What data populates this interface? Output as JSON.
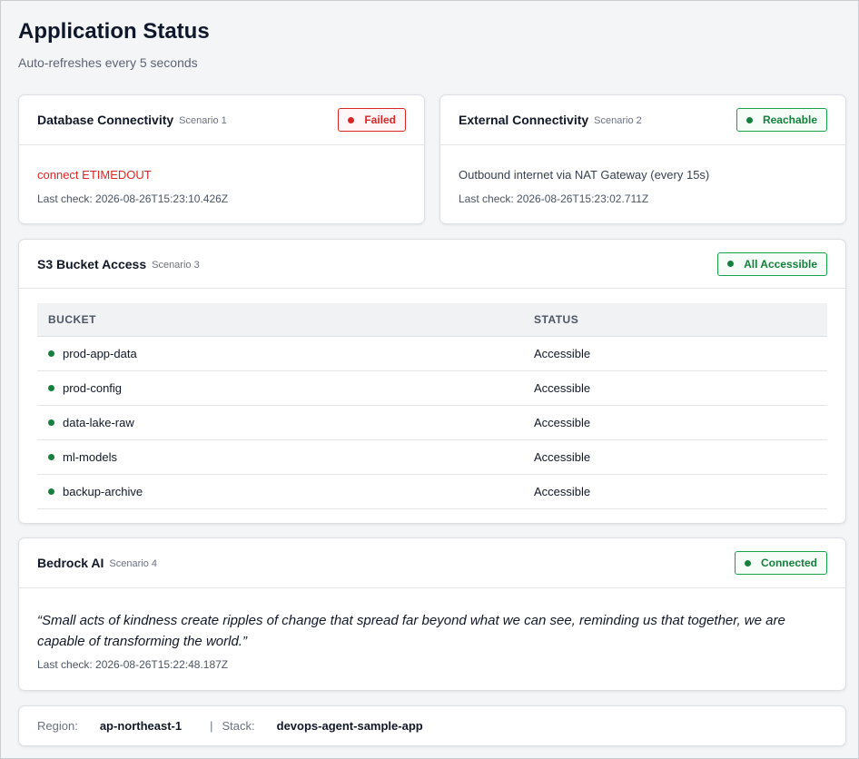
{
  "header": {
    "title": "Application Status",
    "subtitle": "Auto-refreshes every 5 seconds"
  },
  "cards": [
    {
      "title": "Database Connectivity",
      "scenario": "Scenario 1",
      "badge": "Failed",
      "message": "connect ETIMEDOUT",
      "last_check": "Last check: 2026-08-26T15:23:10.426Z"
    },
    {
      "title": "External Connectivity",
      "scenario": "Scenario 2",
      "badge": "Reachable",
      "message": "Outbound internet via NAT Gateway (every 15s)",
      "last_check": "Last check: 2026-08-26T15:23:02.711Z"
    }
  ],
  "s3": {
    "title": "S3 Bucket Access",
    "scenario": "Scenario 3",
    "badge": "All Accessible",
    "columns": [
      "BUCKET",
      "STATUS"
    ],
    "rows": [
      [
        "prod-app-data",
        "Accessible"
      ],
      [
        "prod-config",
        "Accessible"
      ],
      [
        "data-lake-raw",
        "Accessible"
      ],
      [
        "ml-models",
        "Accessible"
      ],
      [
        "backup-archive",
        "Accessible"
      ]
    ]
  },
  "bedrock": {
    "title": "Bedrock AI",
    "scenario": "Scenario 4",
    "badge": "Connected",
    "quote": "“Small acts of kindness create ripples of change that spread far beyond what we can see, reminding us that together, we are capable of transforming the world.”",
    "last_check": "Last check: 2026-08-26T15:22:48.187Z"
  },
  "footer": {
    "region_label": "Region:",
    "region": "ap-northeast-1",
    "separator": "|",
    "stack_label": "Stack:",
    "stack": "devops-agent-sample-app"
  }
}
